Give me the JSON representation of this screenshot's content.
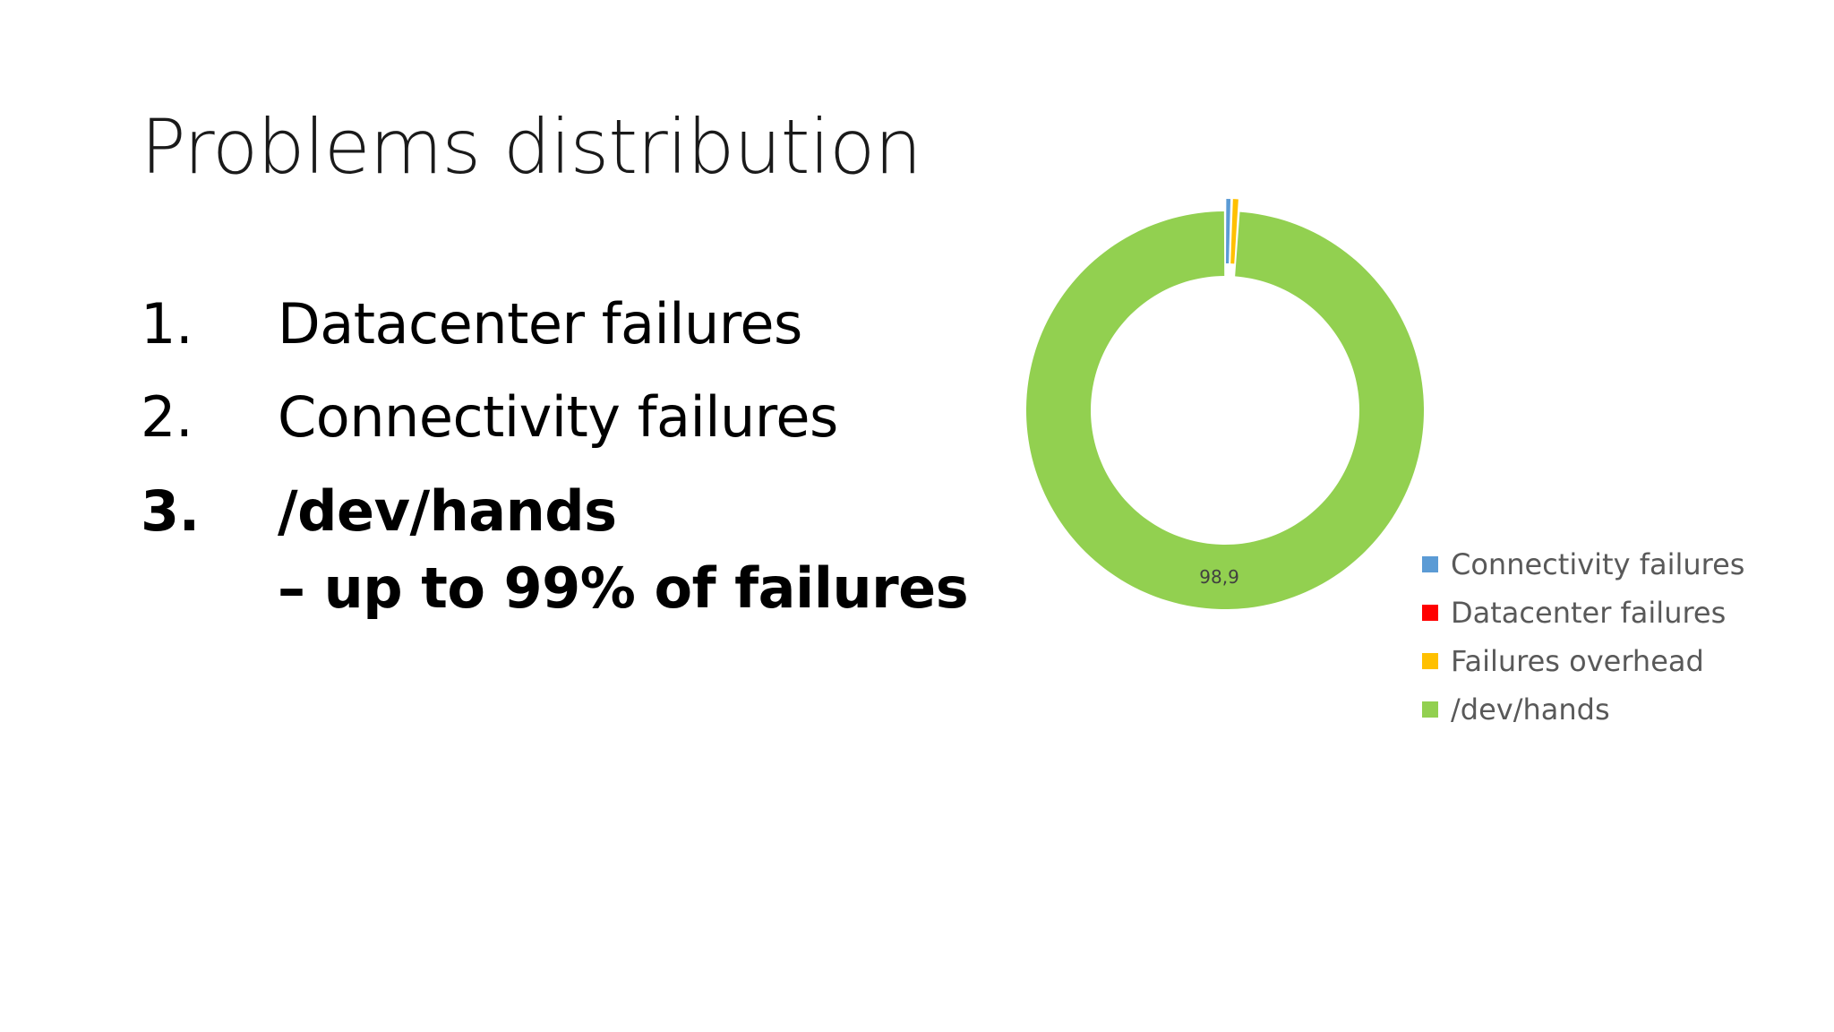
{
  "slide": {
    "title": "Problems distribution",
    "items": [
      {
        "number": "1.",
        "text": "Datacenter failures"
      },
      {
        "number": "2.",
        "text": "Connectivity failures"
      },
      {
        "number": "3.",
        "text": "/dev/hands",
        "subtext": "– up to 99% of failures"
      }
    ]
  },
  "chart_data": {
    "type": "pie",
    "variant": "doughnut",
    "categories": [
      "Connectivity failures",
      "Datacenter failures",
      "Failures overhead",
      "/dev/hands"
    ],
    "values": [
      0.5,
      0.0,
      0.6,
      98.9
    ],
    "colors": [
      "#5b9bd5",
      "#ff0000",
      "#ffc000",
      "#92d050"
    ],
    "data_labels": [
      "",
      "",
      "",
      "98,9"
    ],
    "exploded": [
      true,
      true,
      true,
      false
    ],
    "legend_position": "right-bottom"
  }
}
